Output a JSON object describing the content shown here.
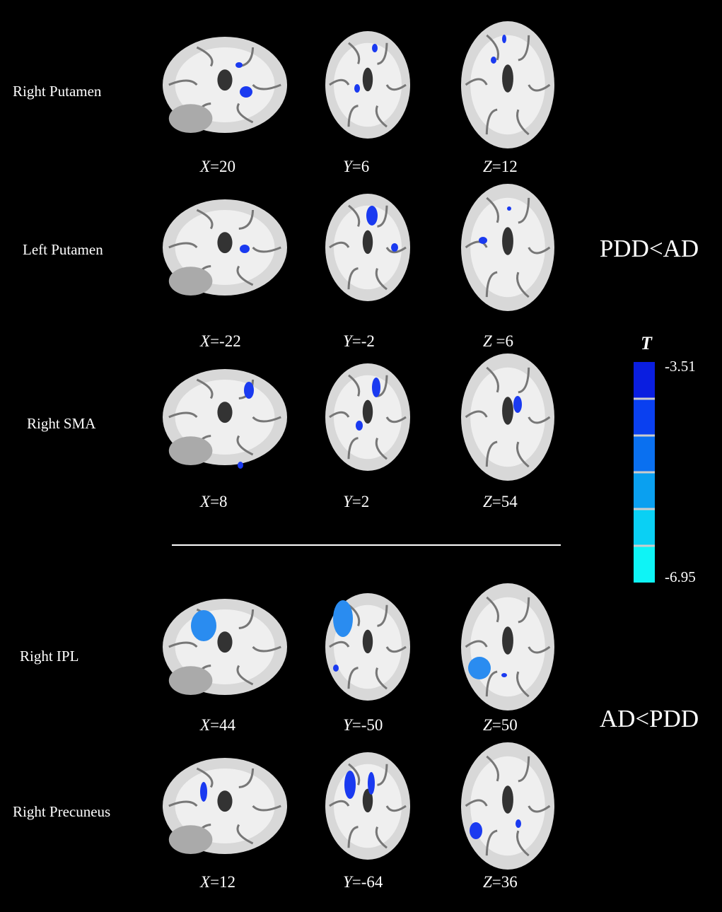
{
  "figure": {
    "rows": [
      {
        "label": "Right  Putamen",
        "slices": [
          {
            "axis": "X",
            "value": "=20"
          },
          {
            "axis": "Y",
            "value": "=6"
          },
          {
            "axis": "Z",
            "value": "=12"
          }
        ]
      },
      {
        "label": "Left  Putamen",
        "slices": [
          {
            "axis": "X",
            "value": "=-22"
          },
          {
            "axis": "Y",
            "value": "=-2"
          },
          {
            "axis": "Z",
            "value": " =6"
          }
        ]
      },
      {
        "label": "Right  SMA",
        "slices": [
          {
            "axis": "X",
            "value": "=8"
          },
          {
            "axis": "Y",
            "value": "=2"
          },
          {
            "axis": "Z",
            "value": "=54"
          }
        ]
      },
      {
        "label": "Right   IPL",
        "slices": [
          {
            "axis": "X",
            "value": "=44"
          },
          {
            "axis": "Y",
            "value": "=-50"
          },
          {
            "axis": "Z",
            "value": "=50"
          }
        ]
      },
      {
        "label": "Right  Precuneus",
        "slices": [
          {
            "axis": "X",
            "value": "=12"
          },
          {
            "axis": "Y",
            "value": "=-64"
          },
          {
            "axis": "Z",
            "value": "=36"
          }
        ]
      }
    ],
    "groups": [
      "PDD<AD",
      "AD<PDD"
    ],
    "colorbar": {
      "title": "T",
      "top_label": "-3.51",
      "bottom_label": "-6.95"
    }
  }
}
